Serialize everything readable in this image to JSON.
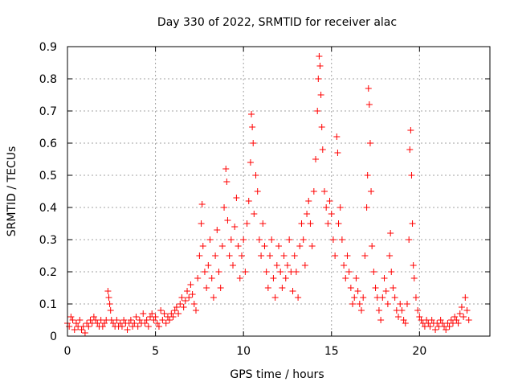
{
  "chart_data": {
    "type": "scatter",
    "title": "Day 330 of 2022, SRMTID for receiver alac",
    "xlabel": "GPS time / hours",
    "ylabel": "SRMTID / TECUs",
    "xlim": [
      0,
      24
    ],
    "ylim": [
      0,
      0.9
    ],
    "xticks": [
      0,
      5,
      10,
      15,
      20
    ],
    "yticks": [
      0,
      0.1,
      0.2,
      0.3,
      0.4,
      0.5,
      0.6,
      0.7,
      0.8,
      0.9
    ],
    "xtick_labels": [
      "0",
      "5",
      "10",
      "15",
      "20"
    ],
    "ytick_labels": [
      "0",
      "0.1",
      "0.2",
      "0.3",
      "0.4",
      "0.5",
      "0.6",
      "0.7",
      "0.8",
      "0.9"
    ],
    "grid": true,
    "marker": "plus",
    "color": "#ff0000",
    "series": [
      {
        "name": "SRMTID",
        "points": [
          [
            0.0,
            0.04
          ],
          [
            0.1,
            0.03
          ],
          [
            0.2,
            0.06
          ],
          [
            0.3,
            0.05
          ],
          [
            0.4,
            0.02
          ],
          [
            0.5,
            0.04
          ],
          [
            0.6,
            0.03
          ],
          [
            0.7,
            0.05
          ],
          [
            0.8,
            0.02
          ],
          [
            0.9,
            0.03
          ],
          [
            1.0,
            0.01
          ],
          [
            1.1,
            0.04
          ],
          [
            1.2,
            0.03
          ],
          [
            1.3,
            0.05
          ],
          [
            1.4,
            0.04
          ],
          [
            1.5,
            0.06
          ],
          [
            1.6,
            0.05
          ],
          [
            1.7,
            0.04
          ],
          [
            1.8,
            0.03
          ],
          [
            1.9,
            0.05
          ],
          [
            2.0,
            0.03
          ],
          [
            2.1,
            0.04
          ],
          [
            2.2,
            0.05
          ],
          [
            2.3,
            0.14
          ],
          [
            2.35,
            0.12
          ],
          [
            2.4,
            0.1
          ],
          [
            2.45,
            0.08
          ],
          [
            2.5,
            0.05
          ],
          [
            2.6,
            0.04
          ],
          [
            2.7,
            0.03
          ],
          [
            2.8,
            0.05
          ],
          [
            2.9,
            0.03
          ],
          [
            3.0,
            0.04
          ],
          [
            3.1,
            0.03
          ],
          [
            3.2,
            0.05
          ],
          [
            3.3,
            0.04
          ],
          [
            3.4,
            0.02
          ],
          [
            3.5,
            0.04
          ],
          [
            3.6,
            0.05
          ],
          [
            3.7,
            0.03
          ],
          [
            3.8,
            0.04
          ],
          [
            3.9,
            0.06
          ],
          [
            4.0,
            0.03
          ],
          [
            4.1,
            0.05
          ],
          [
            4.2,
            0.04
          ],
          [
            4.3,
            0.07
          ],
          [
            4.4,
            0.04
          ],
          [
            4.5,
            0.05
          ],
          [
            4.6,
            0.03
          ],
          [
            4.7,
            0.06
          ],
          [
            4.8,
            0.07
          ],
          [
            4.9,
            0.05
          ],
          [
            5.0,
            0.06
          ],
          [
            5.1,
            0.04
          ],
          [
            5.2,
            0.03
          ],
          [
            5.3,
            0.08
          ],
          [
            5.4,
            0.05
          ],
          [
            5.5,
            0.07
          ],
          [
            5.6,
            0.04
          ],
          [
            5.7,
            0.06
          ],
          [
            5.8,
            0.05
          ],
          [
            5.9,
            0.07
          ],
          [
            6.0,
            0.06
          ],
          [
            6.1,
            0.08
          ],
          [
            6.2,
            0.09
          ],
          [
            6.3,
            0.07
          ],
          [
            6.4,
            0.1
          ],
          [
            6.5,
            0.12
          ],
          [
            6.6,
            0.09
          ],
          [
            6.7,
            0.11
          ],
          [
            6.8,
            0.14
          ],
          [
            6.9,
            0.12
          ],
          [
            7.0,
            0.16
          ],
          [
            7.1,
            0.13
          ],
          [
            7.2,
            0.1
          ],
          [
            7.3,
            0.08
          ],
          [
            7.4,
            0.18
          ],
          [
            7.5,
            0.25
          ],
          [
            7.6,
            0.35
          ],
          [
            7.65,
            0.41
          ],
          [
            7.7,
            0.28
          ],
          [
            7.8,
            0.2
          ],
          [
            7.9,
            0.15
          ],
          [
            8.0,
            0.22
          ],
          [
            8.1,
            0.3
          ],
          [
            8.2,
            0.18
          ],
          [
            8.3,
            0.12
          ],
          [
            8.4,
            0.25
          ],
          [
            8.5,
            0.33
          ],
          [
            8.6,
            0.2
          ],
          [
            8.7,
            0.15
          ],
          [
            8.8,
            0.28
          ],
          [
            8.9,
            0.4
          ],
          [
            9.0,
            0.52
          ],
          [
            9.05,
            0.48
          ],
          [
            9.1,
            0.36
          ],
          [
            9.2,
            0.25
          ],
          [
            9.3,
            0.3
          ],
          [
            9.4,
            0.22
          ],
          [
            9.5,
            0.34
          ],
          [
            9.6,
            0.43
          ],
          [
            9.7,
            0.28
          ],
          [
            9.8,
            0.18
          ],
          [
            9.9,
            0.25
          ],
          [
            10.0,
            0.3
          ],
          [
            10.1,
            0.2
          ],
          [
            10.2,
            0.35
          ],
          [
            10.3,
            0.42
          ],
          [
            10.4,
            0.54
          ],
          [
            10.45,
            0.69
          ],
          [
            10.5,
            0.65
          ],
          [
            10.55,
            0.6
          ],
          [
            10.6,
            0.38
          ],
          [
            10.7,
            0.5
          ],
          [
            10.8,
            0.45
          ],
          [
            10.9,
            0.3
          ],
          [
            11.0,
            0.25
          ],
          [
            11.1,
            0.35
          ],
          [
            11.2,
            0.28
          ],
          [
            11.3,
            0.2
          ],
          [
            11.4,
            0.15
          ],
          [
            11.5,
            0.25
          ],
          [
            11.6,
            0.3
          ],
          [
            11.7,
            0.18
          ],
          [
            11.8,
            0.12
          ],
          [
            11.9,
            0.22
          ],
          [
            12.0,
            0.28
          ],
          [
            12.1,
            0.2
          ],
          [
            12.2,
            0.15
          ],
          [
            12.3,
            0.25
          ],
          [
            12.4,
            0.18
          ],
          [
            12.5,
            0.22
          ],
          [
            12.6,
            0.3
          ],
          [
            12.7,
            0.2
          ],
          [
            12.8,
            0.14
          ],
          [
            12.9,
            0.25
          ],
          [
            13.0,
            0.2
          ],
          [
            13.1,
            0.12
          ],
          [
            13.2,
            0.28
          ],
          [
            13.3,
            0.35
          ],
          [
            13.4,
            0.3
          ],
          [
            13.5,
            0.22
          ],
          [
            13.6,
            0.38
          ],
          [
            13.7,
            0.42
          ],
          [
            13.8,
            0.35
          ],
          [
            13.9,
            0.28
          ],
          [
            14.0,
            0.45
          ],
          [
            14.1,
            0.55
          ],
          [
            14.2,
            0.7
          ],
          [
            14.25,
            0.8
          ],
          [
            14.3,
            0.87
          ],
          [
            14.35,
            0.84
          ],
          [
            14.4,
            0.75
          ],
          [
            14.45,
            0.65
          ],
          [
            14.5,
            0.58
          ],
          [
            14.6,
            0.45
          ],
          [
            14.7,
            0.4
          ],
          [
            14.8,
            0.35
          ],
          [
            14.9,
            0.42
          ],
          [
            15.0,
            0.38
          ],
          [
            15.1,
            0.3
          ],
          [
            15.2,
            0.25
          ],
          [
            15.3,
            0.62
          ],
          [
            15.35,
            0.57
          ],
          [
            15.4,
            0.35
          ],
          [
            15.5,
            0.4
          ],
          [
            15.6,
            0.3
          ],
          [
            15.7,
            0.22
          ],
          [
            15.8,
            0.18
          ],
          [
            15.9,
            0.25
          ],
          [
            16.0,
            0.2
          ],
          [
            16.1,
            0.15
          ],
          [
            16.2,
            0.1
          ],
          [
            16.3,
            0.12
          ],
          [
            16.4,
            0.18
          ],
          [
            16.5,
            0.14
          ],
          [
            16.6,
            0.1
          ],
          [
            16.7,
            0.08
          ],
          [
            16.8,
            0.12
          ],
          [
            16.9,
            0.25
          ],
          [
            17.0,
            0.4
          ],
          [
            17.05,
            0.5
          ],
          [
            17.1,
            0.77
          ],
          [
            17.15,
            0.72
          ],
          [
            17.2,
            0.6
          ],
          [
            17.25,
            0.45
          ],
          [
            17.3,
            0.28
          ],
          [
            17.4,
            0.2
          ],
          [
            17.5,
            0.15
          ],
          [
            17.6,
            0.12
          ],
          [
            17.7,
            0.08
          ],
          [
            17.8,
            0.05
          ],
          [
            17.9,
            0.12
          ],
          [
            18.0,
            0.18
          ],
          [
            18.1,
            0.14
          ],
          [
            18.2,
            0.1
          ],
          [
            18.3,
            0.25
          ],
          [
            18.35,
            0.32
          ],
          [
            18.4,
            0.2
          ],
          [
            18.5,
            0.15
          ],
          [
            18.6,
            0.12
          ],
          [
            18.7,
            0.08
          ],
          [
            18.8,
            0.06
          ],
          [
            18.9,
            0.1
          ],
          [
            19.0,
            0.08
          ],
          [
            19.1,
            0.05
          ],
          [
            19.2,
            0.04
          ],
          [
            19.3,
            0.1
          ],
          [
            19.4,
            0.3
          ],
          [
            19.45,
            0.58
          ],
          [
            19.5,
            0.64
          ],
          [
            19.55,
            0.5
          ],
          [
            19.6,
            0.35
          ],
          [
            19.65,
            0.22
          ],
          [
            19.7,
            0.18
          ],
          [
            19.8,
            0.12
          ],
          [
            19.9,
            0.08
          ],
          [
            20.0,
            0.06
          ],
          [
            20.1,
            0.05
          ],
          [
            20.2,
            0.04
          ],
          [
            20.3,
            0.03
          ],
          [
            20.4,
            0.05
          ],
          [
            20.5,
            0.04
          ],
          [
            20.6,
            0.03
          ],
          [
            20.7,
            0.05
          ],
          [
            20.8,
            0.04
          ],
          [
            20.9,
            0.02
          ],
          [
            21.0,
            0.04
          ],
          [
            21.1,
            0.03
          ],
          [
            21.2,
            0.05
          ],
          [
            21.3,
            0.04
          ],
          [
            21.4,
            0.03
          ],
          [
            21.5,
            0.02
          ],
          [
            21.6,
            0.04
          ],
          [
            21.7,
            0.03
          ],
          [
            21.8,
            0.05
          ],
          [
            21.9,
            0.04
          ],
          [
            22.0,
            0.06
          ],
          [
            22.1,
            0.05
          ],
          [
            22.2,
            0.04
          ],
          [
            22.3,
            0.07
          ],
          [
            22.4,
            0.09
          ],
          [
            22.5,
            0.06
          ],
          [
            22.6,
            0.12
          ],
          [
            22.7,
            0.08
          ],
          [
            22.8,
            0.05
          ]
        ]
      }
    ]
  }
}
